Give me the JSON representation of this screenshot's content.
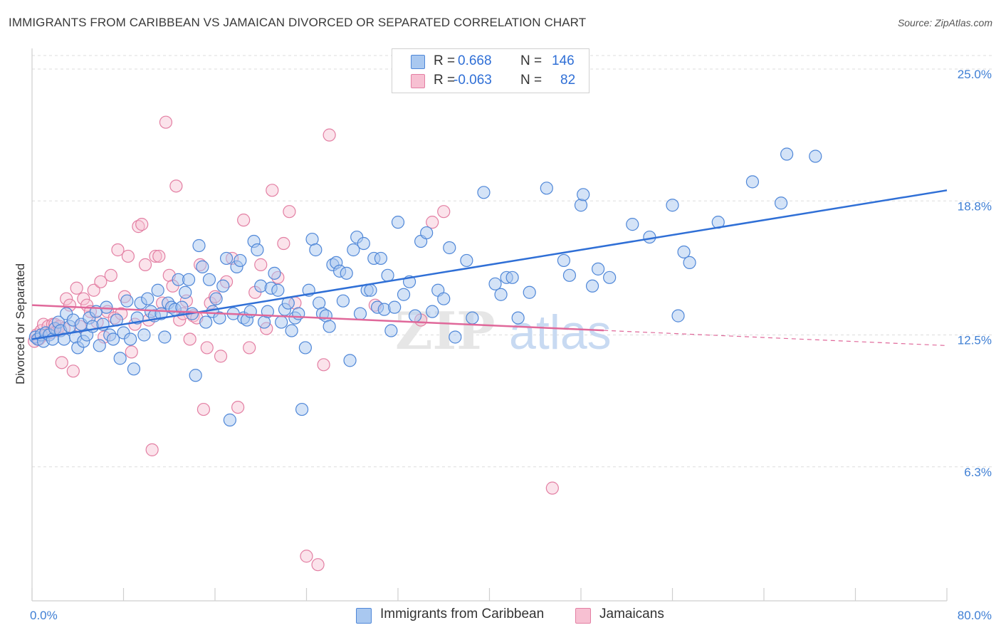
{
  "header": {
    "title": "IMMIGRANTS FROM CARIBBEAN VS JAMAICAN DIVORCED OR SEPARATED CORRELATION CHART",
    "source": "Source: ZipAtlas.com"
  },
  "legend": {
    "rows": [
      {
        "r_label": "R =",
        "r_value": "0.668",
        "n_label": "N =",
        "n_value": "146"
      },
      {
        "r_label": "R =",
        "r_value": "-0.063",
        "n_label": "N =",
        "n_value": "82"
      }
    ]
  },
  "bottom_legend": {
    "series1": "Immigrants from Caribbean",
    "series2": "Jamaicans"
  },
  "colors": {
    "blue_fill": "#a9c8f0",
    "blue_stroke": "#4f87d8",
    "blue_line": "#2f6fd6",
    "pink_fill": "#f7c0d2",
    "pink_stroke": "#e37fa3",
    "pink_line": "#e0689a",
    "tick_label": "#3f7fd4",
    "grid": "#dddddd"
  },
  "chart_data": {
    "type": "scatter",
    "title": "IMMIGRANTS FROM CARIBBEAN VS JAMAICAN DIVORCED OR SEPARATED CORRELATION CHART",
    "xlabel": "",
    "ylabel": "Divorced or Separated",
    "xlim": [
      0,
      80
    ],
    "ylim": [
      0,
      27.5
    ],
    "x_tick_labels": [
      "0.0%",
      "80.0%"
    ],
    "y_ticks": [
      6.3,
      12.5,
      18.8,
      25.0
    ],
    "y_tick_labels": [
      "6.3%",
      "12.5%",
      "18.8%",
      "25.0%"
    ],
    "grid": true,
    "legend_position": "top-center",
    "watermark": "ZIPatlas",
    "series": [
      {
        "name": "Immigrants from Caribbean",
        "color": "#4f87d8",
        "trend": {
          "x": [
            0,
            80
          ],
          "y": [
            12.3,
            19.3
          ],
          "dashed_from": null
        },
        "points": [
          [
            0.3,
            12.4
          ],
          [
            0.5,
            12.3
          ],
          [
            0.8,
            12.5
          ],
          [
            1.0,
            12.2
          ],
          [
            1.2,
            12.6
          ],
          [
            1.5,
            12.5
          ],
          [
            1.8,
            12.3
          ],
          [
            2.0,
            12.8
          ],
          [
            2.3,
            13.1
          ],
          [
            2.5,
            12.7
          ],
          [
            2.8,
            12.3
          ],
          [
            3.0,
            13.5
          ],
          [
            3.3,
            12.9
          ],
          [
            3.6,
            13.2
          ],
          [
            3.8,
            12.4
          ],
          [
            4.0,
            11.9
          ],
          [
            4.3,
            13.0
          ],
          [
            4.5,
            12.2
          ],
          [
            4.8,
            12.5
          ],
          [
            5.0,
            13.3
          ],
          [
            5.3,
            12.9
          ],
          [
            5.6,
            13.6
          ],
          [
            5.9,
            12.0
          ],
          [
            6.2,
            13.0
          ],
          [
            6.5,
            13.8
          ],
          [
            6.8,
            12.5
          ],
          [
            7.1,
            12.3
          ],
          [
            7.4,
            13.2
          ],
          [
            7.7,
            11.4
          ],
          [
            8.0,
            12.6
          ],
          [
            8.3,
            14.1
          ],
          [
            8.6,
            12.3
          ],
          [
            8.9,
            10.9
          ],
          [
            9.2,
            13.3
          ],
          [
            9.5,
            14.0
          ],
          [
            9.8,
            12.5
          ],
          [
            10.1,
            14.2
          ],
          [
            10.4,
            13.6
          ],
          [
            10.7,
            13.4
          ],
          [
            11.0,
            14.6
          ],
          [
            11.3,
            13.5
          ],
          [
            11.6,
            12.4
          ],
          [
            11.9,
            14.0
          ],
          [
            12.2,
            13.8
          ],
          [
            12.5,
            13.7
          ],
          [
            12.8,
            15.1
          ],
          [
            13.1,
            13.8
          ],
          [
            13.4,
            14.5
          ],
          [
            13.7,
            15.1
          ],
          [
            14.0,
            13.5
          ],
          [
            14.3,
            10.6
          ],
          [
            14.6,
            16.7
          ],
          [
            14.9,
            15.7
          ],
          [
            15.2,
            13.1
          ],
          [
            15.5,
            15.1
          ],
          [
            15.8,
            13.6
          ],
          [
            16.1,
            14.2
          ],
          [
            16.4,
            13.3
          ],
          [
            16.7,
            14.8
          ],
          [
            17.0,
            16.1
          ],
          [
            17.3,
            8.5
          ],
          [
            17.6,
            13.5
          ],
          [
            17.9,
            15.7
          ],
          [
            18.2,
            16.0
          ],
          [
            18.5,
            13.3
          ],
          [
            18.8,
            13.2
          ],
          [
            19.1,
            13.6
          ],
          [
            19.4,
            16.9
          ],
          [
            19.7,
            16.5
          ],
          [
            20.0,
            14.8
          ],
          [
            20.3,
            13.1
          ],
          [
            20.6,
            13.6
          ],
          [
            20.9,
            14.7
          ],
          [
            21.2,
            15.4
          ],
          [
            21.5,
            14.6
          ],
          [
            21.8,
            13.1
          ],
          [
            22.1,
            13.7
          ],
          [
            22.4,
            14.0
          ],
          [
            22.7,
            12.7
          ],
          [
            23.0,
            13.3
          ],
          [
            23.3,
            13.5
          ],
          [
            23.6,
            9.0
          ],
          [
            23.9,
            11.9
          ],
          [
            24.2,
            14.6
          ],
          [
            24.5,
            17.0
          ],
          [
            24.8,
            16.5
          ],
          [
            25.1,
            14.0
          ],
          [
            25.4,
            13.5
          ],
          [
            25.7,
            13.4
          ],
          [
            26.0,
            12.9
          ],
          [
            26.3,
            15.8
          ],
          [
            26.6,
            15.9
          ],
          [
            26.9,
            15.5
          ],
          [
            27.2,
            14.1
          ],
          [
            27.5,
            15.4
          ],
          [
            27.8,
            11.3
          ],
          [
            28.1,
            16.5
          ],
          [
            28.4,
            17.1
          ],
          [
            28.7,
            13.5
          ],
          [
            29.0,
            16.8
          ],
          [
            29.3,
            14.6
          ],
          [
            29.6,
            14.6
          ],
          [
            29.9,
            16.1
          ],
          [
            30.2,
            13.8
          ],
          [
            30.5,
            16.1
          ],
          [
            30.8,
            13.7
          ],
          [
            31.1,
            15.3
          ],
          [
            31.4,
            12.7
          ],
          [
            31.7,
            13.8
          ],
          [
            32.0,
            17.8
          ],
          [
            32.5,
            14.4
          ],
          [
            33.0,
            15.0
          ],
          [
            33.5,
            13.4
          ],
          [
            34.0,
            16.9
          ],
          [
            34.5,
            17.3
          ],
          [
            35.0,
            13.6
          ],
          [
            35.5,
            14.6
          ],
          [
            36.0,
            14.2
          ],
          [
            36.5,
            16.6
          ],
          [
            37.0,
            12.4
          ],
          [
            38.0,
            16.0
          ],
          [
            38.5,
            13.3
          ],
          [
            39.5,
            19.2
          ],
          [
            40.5,
            14.9
          ],
          [
            41.0,
            14.4
          ],
          [
            41.5,
            15.2
          ],
          [
            42.0,
            15.2
          ],
          [
            42.5,
            13.3
          ],
          [
            43.5,
            14.5
          ],
          [
            45.0,
            19.4
          ],
          [
            46.5,
            16.0
          ],
          [
            47.0,
            15.3
          ],
          [
            48.0,
            18.6
          ],
          [
            48.2,
            19.1
          ],
          [
            49.0,
            14.8
          ],
          [
            49.5,
            15.6
          ],
          [
            50.5,
            15.2
          ],
          [
            52.5,
            17.7
          ],
          [
            54.0,
            17.1
          ],
          [
            56.0,
            18.6
          ],
          [
            56.5,
            13.4
          ],
          [
            57.0,
            16.4
          ],
          [
            57.5,
            15.9
          ],
          [
            60.0,
            17.8
          ],
          [
            63.0,
            19.7
          ],
          [
            65.5,
            18.7
          ],
          [
            66.0,
            21.0
          ],
          [
            68.5,
            20.9
          ]
        ]
      },
      {
        "name": "Jamaicans",
        "color": "#e37fa3",
        "trend": {
          "x": [
            0,
            80
          ],
          "y": [
            13.9,
            12.0
          ],
          "dashed_from": 50
        },
        "points": [
          [
            0.2,
            12.2
          ],
          [
            0.4,
            12.5
          ],
          [
            0.6,
            12.3
          ],
          [
            0.8,
            12.7
          ],
          [
            1.0,
            13.0
          ],
          [
            1.2,
            12.5
          ],
          [
            1.4,
            12.9
          ],
          [
            1.6,
            12.6
          ],
          [
            1.8,
            13.0
          ],
          [
            2.0,
            13.0
          ],
          [
            2.2,
            12.7
          ],
          [
            2.4,
            12.9
          ],
          [
            2.6,
            11.2
          ],
          [
            2.8,
            12.8
          ],
          [
            3.0,
            14.2
          ],
          [
            3.3,
            13.9
          ],
          [
            3.6,
            10.8
          ],
          [
            3.9,
            14.7
          ],
          [
            4.2,
            12.9
          ],
          [
            4.5,
            14.2
          ],
          [
            4.8,
            13.9
          ],
          [
            5.1,
            13.6
          ],
          [
            5.4,
            14.6
          ],
          [
            5.7,
            13.1
          ],
          [
            6.0,
            15.0
          ],
          [
            6.3,
            12.4
          ],
          [
            6.6,
            13.6
          ],
          [
            6.9,
            15.3
          ],
          [
            7.2,
            13.3
          ],
          [
            7.5,
            16.5
          ],
          [
            7.8,
            13.5
          ],
          [
            8.1,
            14.3
          ],
          [
            8.4,
            16.2
          ],
          [
            8.7,
            11.7
          ],
          [
            9.0,
            13.0
          ],
          [
            9.3,
            17.6
          ],
          [
            9.6,
            17.7
          ],
          [
            9.9,
            15.8
          ],
          [
            10.2,
            13.2
          ],
          [
            10.5,
            7.1
          ],
          [
            10.8,
            16.2
          ],
          [
            11.1,
            16.2
          ],
          [
            11.4,
            14.0
          ],
          [
            11.7,
            22.5
          ],
          [
            12.0,
            15.3
          ],
          [
            12.3,
            14.8
          ],
          [
            12.6,
            19.5
          ],
          [
            12.9,
            13.2
          ],
          [
            13.2,
            13.5
          ],
          [
            13.5,
            14.1
          ],
          [
            13.8,
            12.3
          ],
          [
            14.1,
            13.4
          ],
          [
            14.4,
            13.3
          ],
          [
            14.7,
            15.8
          ],
          [
            15.0,
            9.0
          ],
          [
            15.3,
            11.9
          ],
          [
            15.6,
            14.0
          ],
          [
            16.0,
            14.3
          ],
          [
            16.5,
            11.5
          ],
          [
            17.0,
            15.0
          ],
          [
            17.5,
            16.1
          ],
          [
            18.0,
            9.1
          ],
          [
            18.5,
            17.9
          ],
          [
            19.0,
            11.9
          ],
          [
            19.5,
            14.5
          ],
          [
            20.0,
            15.8
          ],
          [
            20.5,
            12.8
          ],
          [
            21.0,
            19.3
          ],
          [
            21.5,
            15.2
          ],
          [
            22.0,
            16.8
          ],
          [
            22.5,
            18.3
          ],
          [
            23.0,
            14.0
          ],
          [
            24.0,
            2.1
          ],
          [
            25.0,
            1.7
          ],
          [
            25.5,
            11.1
          ],
          [
            26.0,
            21.9
          ],
          [
            30.0,
            13.9
          ],
          [
            34.0,
            13.2
          ],
          [
            35.0,
            17.8
          ],
          [
            36.0,
            18.3
          ],
          [
            45.5,
            5.3
          ]
        ]
      }
    ]
  }
}
